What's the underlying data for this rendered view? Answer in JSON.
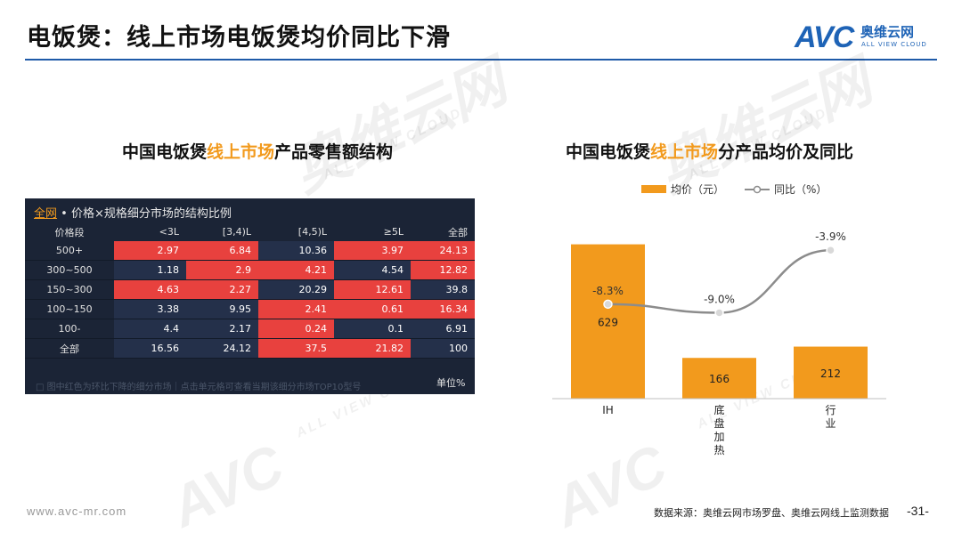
{
  "header": {
    "title": "电饭煲：线上市场电饭煲均价同比下滑",
    "logo_mark": "AVC",
    "logo_cn": "奥维云网",
    "logo_en": "ALL VIEW CLOUD",
    "rule_color": "#1f5aa8"
  },
  "watermark": {
    "mark": "AVC",
    "cn": "奥维云网",
    "en": "ALL VIEW CLOUD"
  },
  "left": {
    "title_pre": "中国电饭煲",
    "title_hl": "线上市场",
    "title_post": "产品零售额结构",
    "panel": {
      "header_link": "全网",
      "header_text": "• 价格×规格细分市场的结构比例",
      "columns": [
        "价格段",
        "<3L",
        "[3,4)L",
        "[4,5)L",
        "≥5L",
        "全部"
      ],
      "rows": [
        {
          "label": "500+",
          "values": [
            "2.97",
            "6.84",
            "10.36",
            "3.97",
            "24.13"
          ],
          "hot": [
            true,
            true,
            false,
            true,
            true
          ]
        },
        {
          "label": "300~500",
          "values": [
            "1.18",
            "2.9",
            "4.21",
            "4.54",
            "12.82"
          ],
          "hot": [
            false,
            true,
            true,
            false,
            true
          ]
        },
        {
          "label": "150~300",
          "values": [
            "4.63",
            "2.27",
            "20.29",
            "12.61",
            "39.8"
          ],
          "hot": [
            true,
            true,
            false,
            true,
            false
          ]
        },
        {
          "label": "100~150",
          "values": [
            "3.38",
            "9.95",
            "2.41",
            "0.61",
            "16.34"
          ],
          "hot": [
            false,
            false,
            true,
            true,
            true
          ]
        },
        {
          "label": "100-",
          "values": [
            "4.4",
            "2.17",
            "0.24",
            "0.1",
            "6.91"
          ],
          "hot": [
            false,
            false,
            true,
            false,
            false
          ]
        },
        {
          "label": "全部",
          "values": [
            "16.56",
            "24.12",
            "37.5",
            "21.82",
            "100"
          ],
          "hot": [
            false,
            false,
            true,
            true,
            false
          ]
        }
      ],
      "note": "图中红色为环比下降的细分市场｜点击单元格可查看当期该细分市场TOP10型号",
      "unit": "单位%",
      "hot_color": "#e8413e",
      "cold_color": "#24304a"
    }
  },
  "right": {
    "title_pre": "中国电饭煲",
    "title_hl": "线上市场",
    "title_post": "分产品均价及同比"
  },
  "chart_data": {
    "type": "bar",
    "categories": [
      "IH",
      "底盘加热",
      "行业"
    ],
    "category_labels": [
      "IH",
      "底\n盘\n加\n热",
      "行\n业"
    ],
    "series": [
      {
        "name": "均价（元）",
        "type": "bar",
        "values": [
          629,
          166,
          212
        ],
        "color": "#f29a1d"
      },
      {
        "name": "同比（%）",
        "type": "line",
        "values": [
          -8.3,
          -9.0,
          -3.9
        ],
        "color": "#8c8c8c"
      }
    ],
    "bar_labels": [
      "629",
      "166",
      "212"
    ],
    "line_labels": [
      "-8.3%",
      "-9.0%",
      "-3.9%"
    ],
    "ylim_bar": [
      0,
      700
    ],
    "ylim_line": [
      -16,
      -2
    ],
    "legend_position": "top",
    "grid": false
  },
  "footer": {
    "url": "www.avc-mr.com",
    "source": "数据来源：奥维云网市场罗盘、奥维云网线上监测数据",
    "page": "-31-"
  },
  "colors": {
    "accent": "#f29a1d",
    "brand": "#1e63b6"
  }
}
